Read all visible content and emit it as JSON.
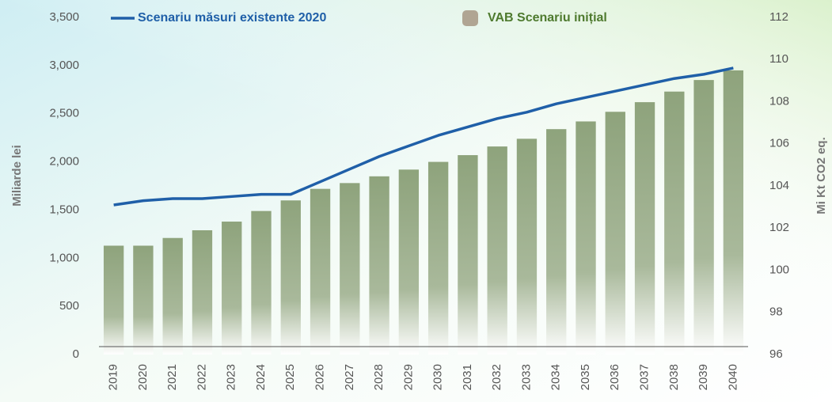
{
  "chart_data": {
    "type": "bar_line",
    "categories": [
      "2019",
      "2020",
      "2021",
      "2022",
      "2023",
      "2024",
      "2025",
      "2026",
      "2027",
      "2028",
      "2029",
      "2030",
      "2031",
      "2032",
      "2033",
      "2034",
      "2035",
      "2036",
      "2037",
      "2038",
      "2039",
      "2040"
    ],
    "series": [
      {
        "name": "Scenariu măsuri existente 2020",
        "type": "line",
        "axis": "y2",
        "color": "#1f5fa8",
        "values": [
          103.1,
          103.3,
          103.4,
          103.4,
          103.5,
          103.6,
          103.6,
          104.2,
          104.8,
          105.4,
          105.9,
          106.4,
          106.8,
          107.2,
          107.5,
          107.9,
          108.2,
          108.5,
          108.8,
          109.1,
          109.3,
          109.6
        ]
      },
      {
        "name": "VAB Scenariu inițial",
        "type": "bar",
        "axis": "y",
        "color": "#93a883",
        "legend_color": "#b0a593",
        "values": [
          1130,
          1130,
          1210,
          1290,
          1380,
          1490,
          1600,
          1720,
          1780,
          1850,
          1920,
          2000,
          2070,
          2160,
          2240,
          2340,
          2420,
          2520,
          2620,
          2730,
          2850,
          2950
        ]
      }
    ],
    "ylabel": "Miliarde lei",
    "y2label": "Mi Kt CO2 eq.",
    "ylim": [
      0,
      3500
    ],
    "yticks": [
      0,
      500,
      {
        "value": 1000,
        "label": "1,000"
      },
      {
        "value": 1500,
        "label": "1,500"
      },
      {
        "value": 2000,
        "label": "2,000"
      },
      {
        "value": 2500,
        "label": "2,500"
      },
      {
        "value": 3000,
        "label": "3,000"
      },
      {
        "value": 3500,
        "label": "3,500"
      }
    ],
    "y2lim": [
      96,
      112
    ],
    "y2ticks": [
      96,
      98,
      100,
      102,
      104,
      106,
      108,
      110,
      112
    ]
  }
}
